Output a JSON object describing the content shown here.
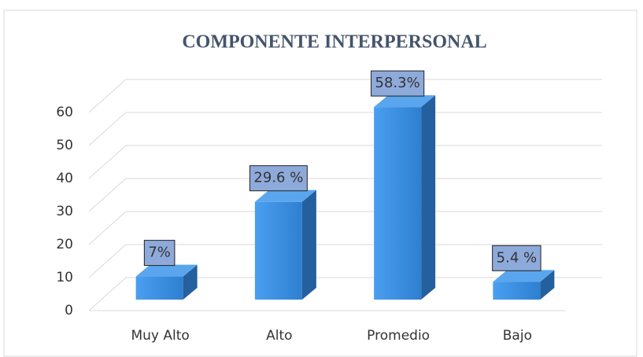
{
  "chart_data": {
    "type": "bar3d",
    "title": "COMPONENTE INTERPERSONAL",
    "categories": [
      "Muy Alto",
      "Alto",
      "Promedio",
      "Bajo"
    ],
    "values": [
      7,
      29.6,
      58.3,
      5.4
    ],
    "value_labels": [
      "7%",
      "29.6 %",
      "58.3%",
      "5.4 %"
    ],
    "color": "#3d8fe0",
    "ylim": [
      0,
      60
    ],
    "yticks": [
      0,
      10,
      20,
      30,
      40,
      50,
      60
    ],
    "grid": true
  }
}
